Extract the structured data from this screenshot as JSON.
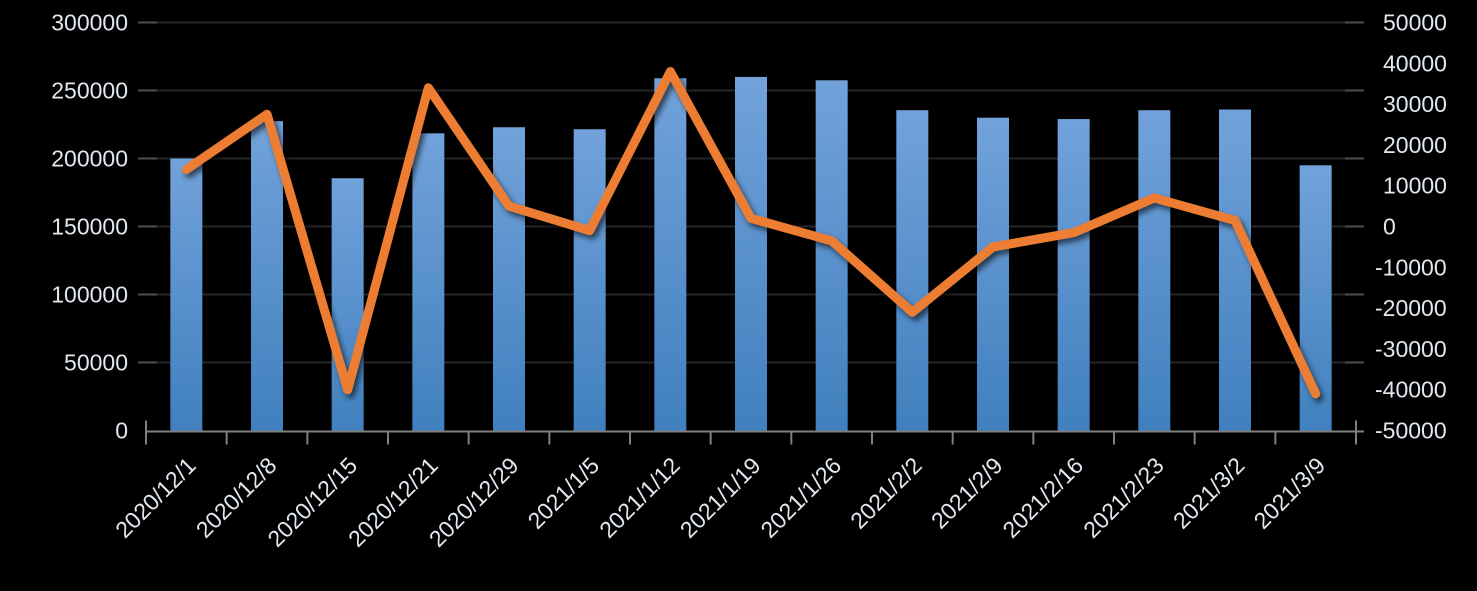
{
  "chart_data": {
    "type": "combo",
    "title": "",
    "legend": "none",
    "grid": true,
    "background": "#000000",
    "gridline_color": "#262626",
    "axis_line_color": "#7f7f7f",
    "side_tick_color": "#4f4f4f",
    "label_color": "#e2e8f0",
    "categories": [
      "2020/12/1",
      "2020/12/8",
      "2020/12/15",
      "2020/12/21",
      "2020/12/29",
      "2021/1/5",
      "2021/1/12",
      "2021/1/19",
      "2021/1/26",
      "2021/2/2",
      "2021/2/9",
      "2021/2/16",
      "2021/2/23",
      "2021/3/2",
      "2021/3/9"
    ],
    "series": [
      {
        "name": "bars",
        "type": "bar",
        "axis": "left",
        "color_top": "#72A2DB",
        "color_bottom": "#4080BE",
        "values": [
          200000,
          227500,
          185500,
          218500,
          223000,
          221500,
          259000,
          260000,
          257500,
          235500,
          230000,
          229000,
          235500,
          236000,
          195000
        ]
      },
      {
        "name": "line",
        "type": "line",
        "axis": "right",
        "color": "#ED7D31",
        "values": [
          14000,
          27500,
          -40000,
          34000,
          5000,
          -1000,
          38000,
          2000,
          -3500,
          -21000,
          -5000,
          -1500,
          7000,
          1500,
          -41000
        ]
      }
    ],
    "left_axis": {
      "min": 0,
      "max": 300000,
      "step": 50000,
      "tick_labels": [
        "300000",
        "250000",
        "200000",
        "150000",
        "100000",
        "50000",
        "0"
      ]
    },
    "right_axis": {
      "min": -50000,
      "max": 50000,
      "step": 10000,
      "tick_labels": [
        "50000",
        "40000",
        "30000",
        "20000",
        "10000",
        "0",
        "-10000",
        "-20000",
        "-30000",
        "-40000",
        "-50000"
      ]
    }
  }
}
